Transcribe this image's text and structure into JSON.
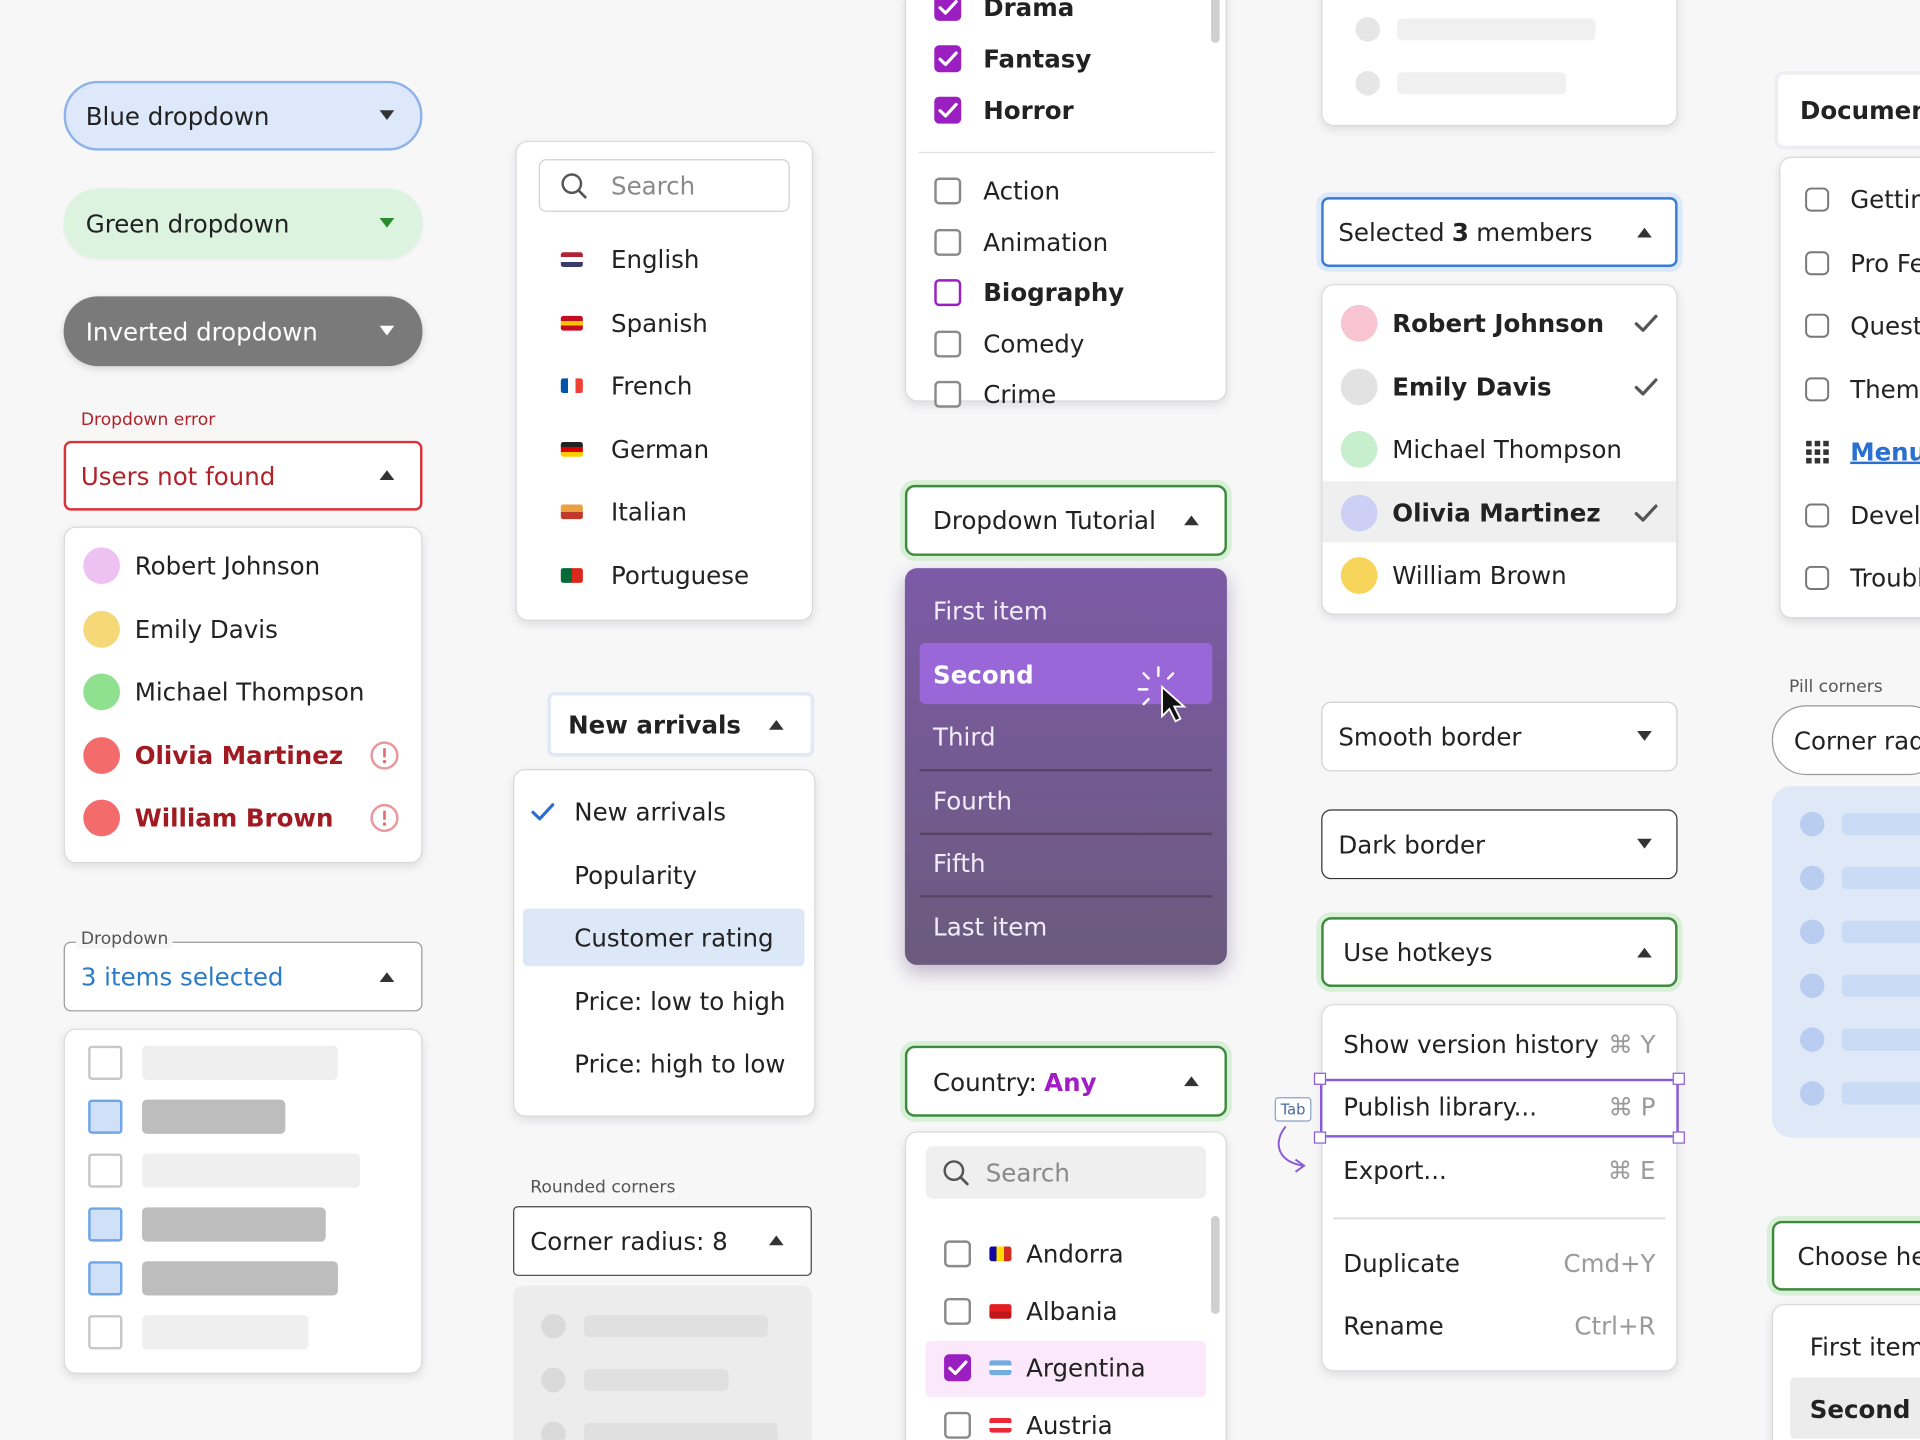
{
  "dropdowns": {
    "blue": "Blue dropdown",
    "green": "Green dropdown",
    "inverted": "Inverted dropdown",
    "error_label": "Dropdown error",
    "error_value": "Users not found",
    "users": [
      "Robert Johnson",
      "Emily Davis",
      "Michael Thompson",
      "Olivia Martinez",
      "William Brown"
    ],
    "multi_label": "Dropdown",
    "multi_value": "3 items selected"
  },
  "languages": {
    "search": "Search",
    "items": [
      "English",
      "Spanish",
      "French",
      "German",
      "Italian",
      "Portuguese"
    ]
  },
  "sort": {
    "value": "New arrivals",
    "items": [
      "New arrivals",
      "Popularity",
      "Customer rating",
      "Price: low to high",
      "Price: high to low"
    ]
  },
  "rounded": {
    "label": "Rounded corners",
    "value": "Corner radius: 8"
  },
  "genres": {
    "checked": [
      "Drama",
      "Fantasy",
      "Horror"
    ],
    "unchecked": [
      "Action",
      "Animation",
      "Biography",
      "Comedy",
      "Crime"
    ]
  },
  "tutorial": {
    "value": "Dropdown Tutorial",
    "items": [
      "First item",
      "Second",
      "Third",
      "Fourth",
      "Fifth",
      "Last item"
    ]
  },
  "country": {
    "label": "Country:",
    "value": "Any",
    "search": "Search",
    "items": [
      "Andorra",
      "Albania",
      "Argentina",
      "Austria"
    ]
  },
  "members": {
    "prefix": "Selected",
    "count": "3",
    "suffix": "members",
    "items": [
      "Robert Johnson",
      "Emily Davis",
      "Michael Thompson",
      "Olivia Martinez",
      "William Brown"
    ]
  },
  "borders": {
    "smooth": "Smooth border",
    "dark": "Dark border"
  },
  "hotkeys": {
    "value": "Use hotkeys",
    "tab": "Tab",
    "items": [
      {
        "label": "Show version history",
        "key": "⌘ Y"
      },
      {
        "label": "Publish library...",
        "key": "⌘ P"
      },
      {
        "label": "Export...",
        "key": "⌘ E"
      },
      {
        "label": "Duplicate",
        "key": "Cmd+Y"
      },
      {
        "label": "Rename",
        "key": "Ctrl+R"
      }
    ]
  },
  "docs": {
    "value": "Document",
    "items": [
      "Gettin",
      "Pro Fe",
      "Quest",
      "Theme",
      "Menu",
      "Develo",
      "Troubl"
    ]
  },
  "pill": {
    "label": "Pill corners",
    "value": "Corner radi"
  },
  "choose": {
    "value": "Choose he",
    "items": [
      "First item",
      "Second"
    ]
  }
}
